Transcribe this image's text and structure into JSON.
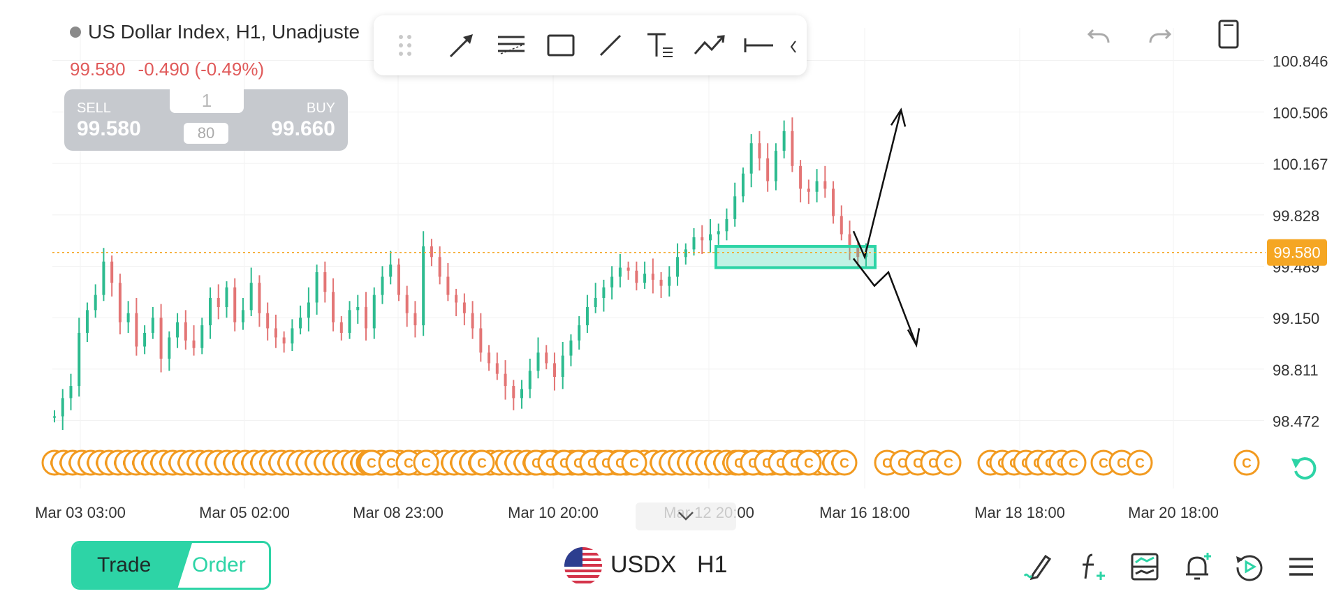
{
  "header": {
    "title": "US Dollar Index, H1, Unadjuste",
    "last_price": "99.580",
    "change": "-0.490 (-0.49%)"
  },
  "trade_panel": {
    "sell_label": "SELL",
    "sell_price": "99.580",
    "buy_label": "BUY",
    "buy_price": "99.660",
    "quantity": "1",
    "spread": "80"
  },
  "drawing_toolbar": {
    "tools": [
      "drag-handle-icon",
      "arrow-tool-icon",
      "fib-tool-icon",
      "rectangle-tool-icon",
      "line-tool-icon",
      "text-tool-icon",
      "polyline-tool-icon",
      "horizontal-line-tool-icon"
    ]
  },
  "top_actions": [
    "undo-icon",
    "redo-icon",
    "phone-layout-icon"
  ],
  "chart_data": {
    "type": "candlestick",
    "symbol": "USDX",
    "timeframe": "H1",
    "y_ticks": [
      "100.846",
      "100.506",
      "100.167",
      "99.828",
      "99.489",
      "99.150",
      "98.811",
      "98.472"
    ],
    "x_ticks": [
      "Mar 03 03:00",
      "Mar 05 02:00",
      "Mar 08 23:00",
      "Mar 10 20:00",
      "Mar 12 20:00",
      "Mar 16 18:00",
      "Mar 18 18:00",
      "Mar 20 18:00"
    ],
    "ylim": [
      98.3,
      101.06
    ],
    "current_price": "99.580",
    "price_line": 99.58,
    "colors": {
      "up": "#2dbb8f",
      "down": "#e37575",
      "price_label": "#f5a623",
      "event_marker": "#f29a1f",
      "zone": "#2dd4a6"
    },
    "ohlc_points": [
      98.5,
      98.62,
      98.7,
      99.05,
      99.2,
      99.3,
      99.52,
      99.38,
      99.12,
      99.18,
      98.96,
      99.05,
      99.15,
      98.88,
      99.02,
      99.12,
      99.0,
      98.95,
      99.1,
      99.28,
      99.22,
      99.35,
      99.12,
      99.2,
      99.38,
      99.18,
      99.08,
      99.02,
      98.98,
      99.08,
      99.15,
      99.25,
      99.45,
      99.32,
      99.12,
      99.05,
      99.2,
      99.22,
      99.08,
      99.3,
      99.42,
      99.5,
      99.3,
      99.18,
      99.1,
      99.62,
      99.55,
      99.42,
      99.3,
      99.25,
      99.18,
      99.08,
      98.92,
      98.85,
      98.78,
      98.7,
      98.62,
      98.68,
      98.8,
      98.92,
      98.85,
      98.76,
      98.9,
      99.0,
      99.1,
      99.22,
      99.28,
      99.35,
      99.42,
      99.48,
      99.46,
      99.38,
      99.44,
      99.4,
      99.36,
      99.42,
      99.55,
      99.6,
      99.68,
      99.66,
      99.7,
      99.72,
      99.8,
      99.95,
      100.1,
      100.3,
      100.2,
      100.05,
      100.25,
      100.38,
      100.15,
      100.0,
      99.98,
      100.05,
      100.0,
      99.82,
      99.7,
      99.62,
      99.55,
      99.58
    ],
    "zone": {
      "price_top": 99.62,
      "price_bottom": 99.48
    },
    "event_markers": 60,
    "forecast": {
      "up_target": 100.52,
      "down_target": 98.97
    }
  },
  "bottom_bar": {
    "trade_label": "Trade",
    "order_label": "Order",
    "symbol": "USDX",
    "timeframe": "H1",
    "icons": [
      "draw-icon",
      "indicator-icon",
      "chart-settings-icon",
      "alert-add-icon",
      "replay-icon",
      "menu-icon"
    ]
  },
  "misc": {
    "reset-icon": "reset-view-icon",
    "collapse-icon": "chevron-down-icon"
  }
}
